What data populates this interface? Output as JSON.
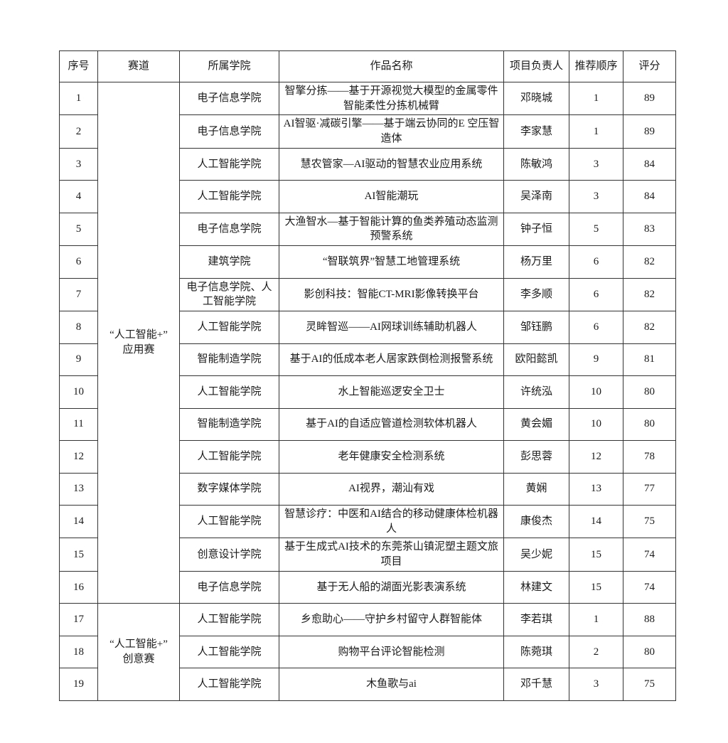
{
  "page": {
    "background_color": "#ffffff",
    "text_color": "#1a1a1a",
    "border_color": "#333333"
  },
  "table": {
    "headers": {
      "serial": "序号",
      "track": "赛道",
      "college": "所属学院",
      "title": "作品名称",
      "leader": "项目负责人",
      "order": "推荐顺序",
      "score": "评分"
    },
    "track_groups": [
      {
        "label": "“人工智能+”应用赛",
        "line1": "“人工智能+”",
        "line2": "应用赛",
        "row_count": 16
      },
      {
        "label": "“人工智能+”创意赛",
        "line1": "“人工智能+”",
        "line2": "创意赛",
        "row_count": 3
      }
    ],
    "rows": [
      {
        "no": 1,
        "college": "电子信息学院",
        "title": "智擎分拣——基于开源视觉大模型的金属零件智能柔性分拣机械臂",
        "leader": "邓晓城",
        "order": 1,
        "score": 89
      },
      {
        "no": 2,
        "college": "电子信息学院",
        "title": "AI智驱·减碳引擎——基于端云协同的E 空压智造体",
        "leader": "李家慧",
        "order": 1,
        "score": 89
      },
      {
        "no": 3,
        "college": "人工智能学院",
        "title": "慧农管家—AI驱动的智慧农业应用系统",
        "leader": "陈敏鸿",
        "order": 3,
        "score": 84
      },
      {
        "no": 4,
        "college": "人工智能学院",
        "title": "AI智能潮玩",
        "leader": "吴泽南",
        "order": 3,
        "score": 84
      },
      {
        "no": 5,
        "college": "电子信息学院",
        "title": "大渔智水—基于智能计算的鱼类养殖动态监测预警系统",
        "leader": "钟子恒",
        "order": 5,
        "score": 83
      },
      {
        "no": 6,
        "college": "建筑学院",
        "title": "“智联筑界”智慧工地管理系统",
        "leader": "杨万里",
        "order": 6,
        "score": 82
      },
      {
        "no": 7,
        "college": "电子信息学院、人工智能学院",
        "title": "影创科技：智能CT-MRI影像转换平台",
        "leader": "李多顺",
        "order": 6,
        "score": 82
      },
      {
        "no": 8,
        "college": "人工智能学院",
        "title": "灵眸智巡——AI网球训练辅助机器人",
        "leader": "邹钰鹏",
        "order": 6,
        "score": 82
      },
      {
        "no": 9,
        "college": "智能制造学院",
        "title": "基于AI的低成本老人居家跌倒检测报警系统",
        "leader": "欧阳懿凯",
        "order": 9,
        "score": 81
      },
      {
        "no": 10,
        "college": "人工智能学院",
        "title": "水上智能巡逻安全卫士",
        "leader": "许统泓",
        "order": 10,
        "score": 80
      },
      {
        "no": 11,
        "college": "智能制造学院",
        "title": "基于AI的自适应管道检测软体机器人",
        "leader": "黄会媚",
        "order": 10,
        "score": 80
      },
      {
        "no": 12,
        "college": "人工智能学院",
        "title": "老年健康安全检测系统",
        "leader": "彭思蓉",
        "order": 12,
        "score": 78
      },
      {
        "no": 13,
        "college": "数字媒体学院",
        "title": "AI视界，潮汕有戏",
        "leader": "黄娴",
        "order": 13,
        "score": 77
      },
      {
        "no": 14,
        "college": "人工智能学院",
        "title": "智慧诊疗：中医和AI结合的移动健康体检机器人",
        "leader": "康俊杰",
        "order": 14,
        "score": 75
      },
      {
        "no": 15,
        "college": "创意设计学院",
        "title": "基于生成式AI技术的东莞茶山镇泥塑主题文旅项目",
        "leader": "吴少妮",
        "order": 15,
        "score": 74
      },
      {
        "no": 16,
        "college": "电子信息学院",
        "title": "基于无人船的湖面光影表演系统",
        "leader": "林建文",
        "order": 15,
        "score": 74
      },
      {
        "no": 17,
        "college": "人工智能学院",
        "title": "乡愈助心——守护乡村留守人群智能体",
        "leader": "李若琪",
        "order": 1,
        "score": 88
      },
      {
        "no": 18,
        "college": "人工智能学院",
        "title": "购物平台评论智能检测",
        "leader": "陈菀琪",
        "order": 2,
        "score": 80
      },
      {
        "no": 19,
        "college": "人工智能学院",
        "title": "木鱼歌与ai",
        "leader": "邓千慧",
        "order": 3,
        "score": 75
      }
    ]
  }
}
